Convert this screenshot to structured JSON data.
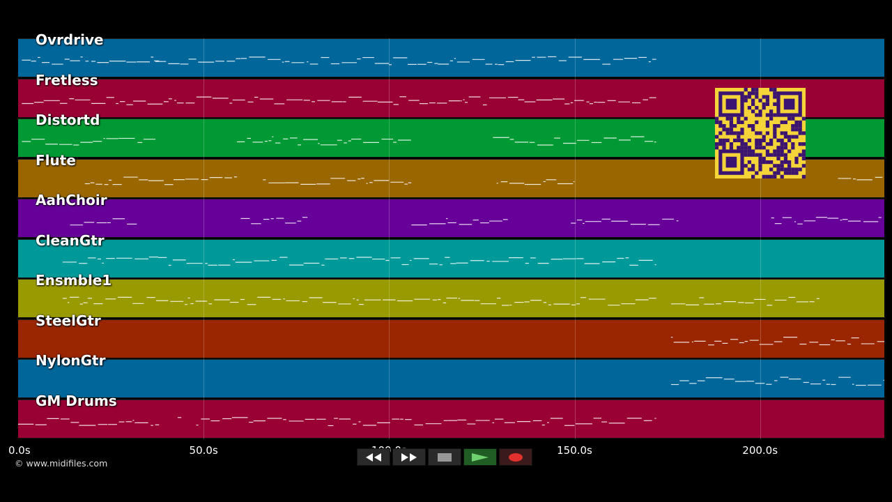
{
  "tracks": [
    {
      "name": "Ovrdrive",
      "color": "#016699"
    },
    {
      "name": "Fretless",
      "color": "#990033"
    },
    {
      "name": "Distortd",
      "color": "#009933"
    },
    {
      "name": "Flute",
      "color": "#996600"
    },
    {
      "name": "AahChoir",
      "color": "#660099"
    },
    {
      "name": "CleanGtr",
      "color": "#009999"
    },
    {
      "name": "Ensmble1",
      "color": "#999900"
    },
    {
      "name": "SteelGtr",
      "color": "#992600"
    },
    {
      "name": "NylonGtr",
      "color": "#016699"
    },
    {
      "name": "GM Drums",
      "color": "#990033"
    }
  ],
  "time_axis": {
    "ticks": [
      {
        "label": "0.0s",
        "seconds": 0
      },
      {
        "label": "50.0s",
        "seconds": 50
      },
      {
        "label": "100.0s",
        "seconds": 100
      },
      {
        "label": "150.0s",
        "seconds": 150
      },
      {
        "label": "200.0s",
        "seconds": 200
      }
    ],
    "max_seconds": 233.5
  },
  "copyright": "© www.midifiles.com",
  "transport": [
    {
      "name": "rewind-button",
      "icon": "rewind-icon"
    },
    {
      "name": "forward-button",
      "icon": "fast-forward-icon"
    },
    {
      "name": "stop-button",
      "icon": "stop-icon"
    },
    {
      "name": "play-button",
      "icon": "play-icon"
    },
    {
      "name": "record-button",
      "icon": "record-icon"
    }
  ],
  "qr_code": {
    "icon": "qr-code-icon",
    "background": "#f5d43a",
    "foreground": "#3a1470"
  },
  "note_segments": [
    [
      [
        1,
        38
      ],
      [
        37,
        172
      ]
    ],
    [
      [
        1,
        172
      ]
    ],
    [
      [
        1,
        37
      ],
      [
        59,
        106
      ],
      [
        128,
        172
      ]
    ],
    [
      [
        18,
        59
      ],
      [
        66,
        106
      ],
      [
        129,
        150
      ],
      [
        221,
        233
      ]
    ],
    [
      [
        14,
        32
      ],
      [
        60,
        78
      ],
      [
        106,
        132
      ],
      [
        149,
        178
      ],
      [
        203,
        233
      ]
    ],
    [
      [
        12,
        172
      ]
    ],
    [
      [
        12,
        172
      ],
      [
        176,
        216
      ]
    ],
    [
      [
        176,
        233.5
      ]
    ],
    [
      [
        176,
        233.5
      ]
    ],
    [
      [
        0,
        38
      ],
      [
        43,
        44
      ],
      [
        48,
        172
      ]
    ]
  ]
}
